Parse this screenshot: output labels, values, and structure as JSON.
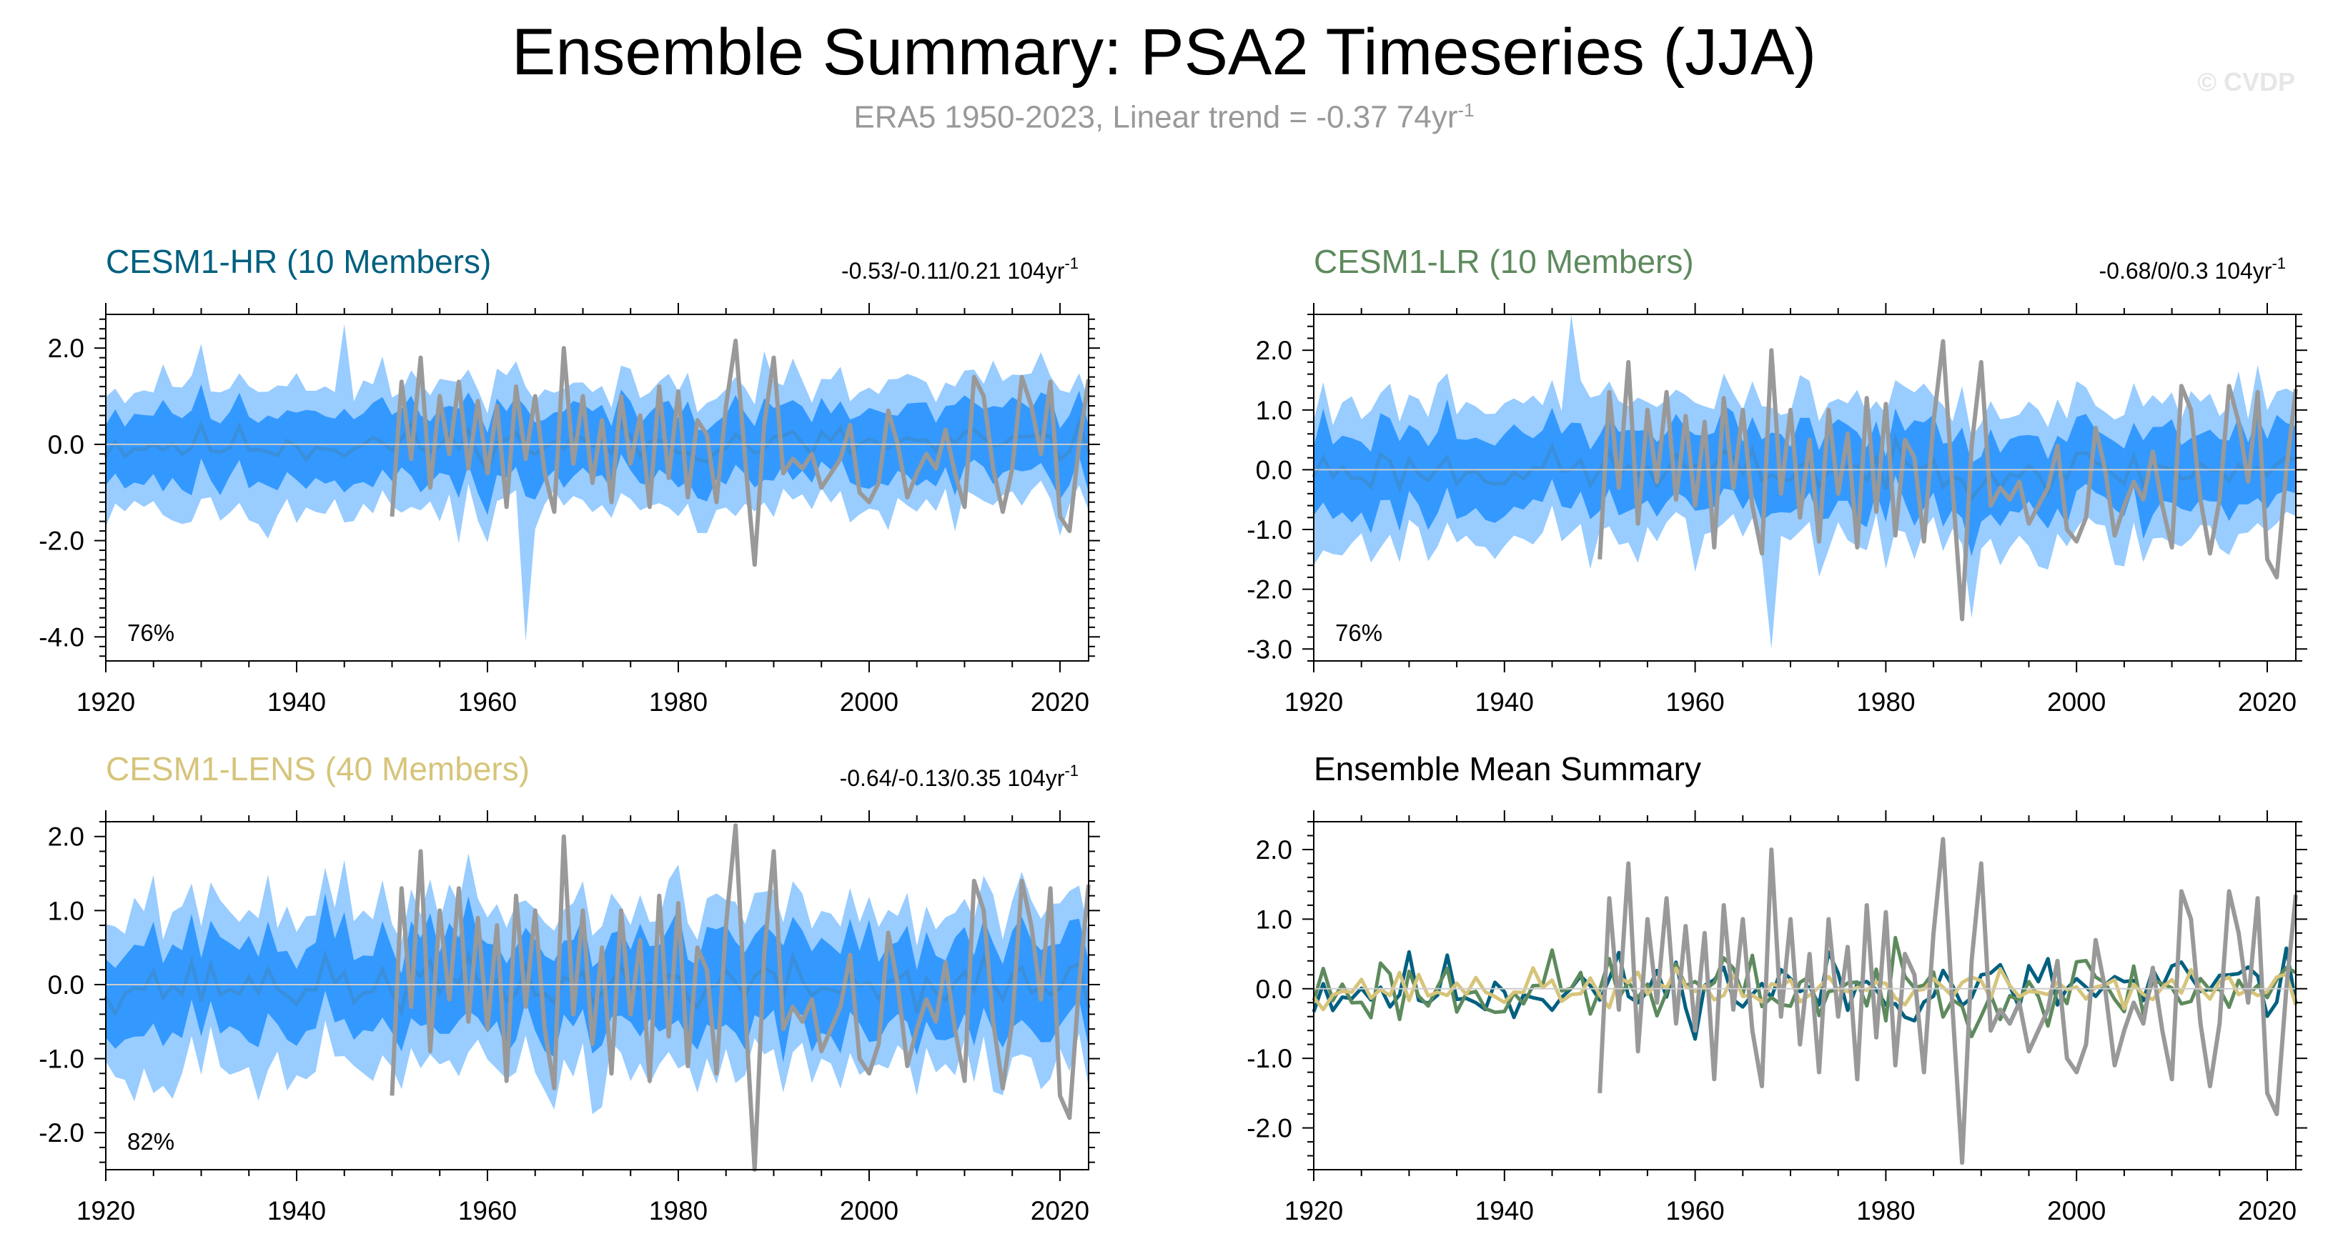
{
  "header": {
    "title": "Ensemble Summary: PSA2 Timeseries (JJA)",
    "subtitle_text": "ERA5 1950-2023, Linear trend = -0.37 74yr",
    "subtitle_sup": "-1",
    "watermark": "© CVDP"
  },
  "colors": {
    "band_outer": "#99ccff",
    "band_inner": "#3399ff",
    "ens_mean_line": "#3a8fdc",
    "obs_line": "#999999",
    "hr": "#006080",
    "lr": "#5d8a5d",
    "lens": "#d6c47a",
    "zero_line": "#cccccc"
  },
  "chart_data": [
    {
      "id": "hr",
      "type": "area",
      "title": "CESM1-HR (10 Members)",
      "title_color": "#006080",
      "trend_text": "-0.53/-0.11/0.21 104yr",
      "trend_sup": "-1",
      "percent_label": "76%",
      "x_range": [
        1920,
        2023
      ],
      "ylim": [
        -4.5,
        2.7
      ],
      "yticks": [
        2.0,
        0.0,
        -2.0,
        -4.0
      ],
      "ytick_labels": [
        "2.0",
        "0.0",
        "-2.0",
        "-4.0"
      ],
      "xticks": [
        1920,
        1940,
        1960,
        1980,
        2000,
        2020
      ],
      "xtick_labels": [
        "1920",
        "1940",
        "1960",
        "1980",
        "2000",
        "2020"
      ],
      "seed": 11,
      "amplitude": 1.0,
      "extremes": [
        {
          "year": 1945,
          "high": 2.5
        },
        {
          "year": 1964,
          "low": -4.1
        }
      ]
    },
    {
      "id": "lr",
      "type": "area",
      "title": "CESM1-LR (10 Members)",
      "title_color": "#5d8a5d",
      "trend_text": "-0.68/0/0.3 104yr",
      "trend_sup": "-1",
      "percent_label": "76%",
      "x_range": [
        1920,
        2023
      ],
      "ylim": [
        -3.2,
        2.6
      ],
      "yticks": [
        2.0,
        1.0,
        0.0,
        -1.0,
        -2.0,
        -3.0
      ],
      "ytick_labels": [
        "2.0",
        "1.0",
        "0.0",
        "-1.0",
        "-2.0",
        "-3.0"
      ],
      "xticks": [
        1920,
        1940,
        1960,
        1980,
        2000,
        2020
      ],
      "xtick_labels": [
        "1920",
        "1940",
        "1960",
        "1980",
        "2000",
        "2020"
      ],
      "seed": 23,
      "amplitude": 0.9,
      "extremes": [
        {
          "year": 1947,
          "high": 2.6
        },
        {
          "year": 1968,
          "low": -3.0
        }
      ]
    },
    {
      "id": "lens",
      "type": "area",
      "title": "CESM1-LENS (40 Members)",
      "title_color": "#d6c47a",
      "trend_text": "-0.64/-0.13/0.35 104yr",
      "trend_sup": "-1",
      "percent_label": "82%",
      "x_range": [
        1920,
        2023
      ],
      "ylim": [
        -2.5,
        2.2
      ],
      "yticks": [
        2.0,
        1.0,
        0.0,
        -1.0,
        -2.0
      ],
      "ytick_labels": [
        "2.0",
        "1.0",
        "0.0",
        "-1.0",
        "-2.0"
      ],
      "xticks": [
        1920,
        1940,
        1960,
        1980,
        2000,
        2020
      ],
      "xtick_labels": [
        "1920",
        "1940",
        "1960",
        "1980",
        "2000",
        "2020"
      ],
      "seed": 37,
      "amplitude": 0.85,
      "extremes": []
    },
    {
      "id": "mean",
      "type": "line",
      "title": "Ensemble Mean Summary",
      "title_color": "#000000",
      "x_range": [
        1920,
        2023
      ],
      "ylim": [
        -2.6,
        2.4
      ],
      "yticks": [
        2.0,
        1.0,
        0.0,
        -1.0,
        -2.0
      ],
      "ytick_labels": [
        "2.0",
        "1.0",
        "0.0",
        "-1.0",
        "-2.0"
      ],
      "xticks": [
        1920,
        1940,
        1960,
        1980,
        2000,
        2020
      ],
      "xtick_labels": [
        "1920",
        "1940",
        "1960",
        "1980",
        "2000",
        "2020"
      ],
      "series": [
        {
          "name": "CESM1-HR ensemble mean",
          "color": "#006080",
          "seed": 11,
          "scale": 0.32
        },
        {
          "name": "CESM1-LR ensemble mean",
          "color": "#5d8a5d",
          "seed": 23,
          "scale": 0.32
        },
        {
          "name": "CESM1-LENS ensemble mean",
          "color": "#d6c47a",
          "seed": 37,
          "scale": 0.16
        }
      ]
    }
  ],
  "observations": {
    "name": "ERA5",
    "years": [
      1950,
      1951,
      1952,
      1953,
      1954,
      1955,
      1956,
      1957,
      1958,
      1959,
      1960,
      1961,
      1962,
      1963,
      1964,
      1965,
      1966,
      1967,
      1968,
      1969,
      1970,
      1971,
      1972,
      1973,
      1974,
      1975,
      1976,
      1977,
      1978,
      1979,
      1980,
      1981,
      1982,
      1983,
      1984,
      1985,
      1986,
      1987,
      1988,
      1989,
      1990,
      1991,
      1992,
      1993,
      1994,
      1995,
      1996,
      1997,
      1998,
      1999,
      2000,
      2001,
      2002,
      2003,
      2004,
      2005,
      2006,
      2007,
      2008,
      2009,
      2010,
      2011,
      2012,
      2013,
      2014,
      2015,
      2016,
      2017,
      2018,
      2019,
      2020,
      2021,
      2022,
      2023
    ],
    "values": [
      -1.5,
      1.3,
      -0.3,
      1.8,
      -0.9,
      1.0,
      -0.2,
      1.3,
      -0.5,
      0.9,
      -0.6,
      0.8,
      -1.3,
      1.2,
      -0.3,
      1.0,
      -0.6,
      -1.4,
      2.0,
      -0.4,
      1.0,
      -0.8,
      0.5,
      -1.2,
      1.0,
      -0.4,
      0.6,
      -1.3,
      1.2,
      -0.7,
      1.1,
      -1.1,
      0.5,
      0.2,
      -1.2,
      0.8,
      2.15,
      -0.3,
      -2.5,
      0.4,
      1.8,
      -0.6,
      -0.3,
      -0.5,
      -0.2,
      -0.9,
      -0.6,
      -0.3,
      0.4,
      -1.0,
      -1.2,
      -0.8,
      0.7,
      0.0,
      -1.1,
      -0.6,
      -0.2,
      -0.5,
      0.3,
      -0.6,
      -1.3,
      1.4,
      1.0,
      -0.5,
      -1.4,
      -0.5,
      1.4,
      0.8,
      -0.2,
      1.3,
      -1.5,
      -1.8,
      0.0,
      1.35
    ]
  }
}
